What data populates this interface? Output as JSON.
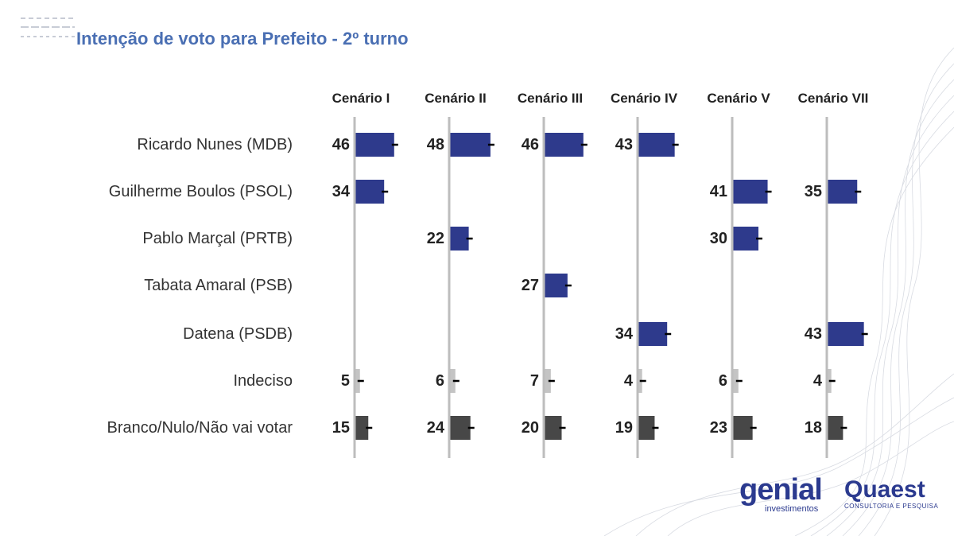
{
  "header": {
    "title": "Intenção de voto para Prefeito - 2º turno"
  },
  "logos": {
    "genial_word": "genial",
    "genial_sub": "investimentos",
    "quaest_word": "Quaest",
    "quaest_sub": "CONSULTORIA E PESQUISA"
  },
  "colors": {
    "candidate_bar": "#2e3a8c",
    "undecided_bar": "#c4c4c4",
    "blank_bar": "#474747",
    "axis_line": "#bdbdbd",
    "title": "#4a6fb3"
  },
  "chart_data": {
    "type": "bar",
    "orientation": "horizontal",
    "title": "Intenção de voto para Prefeito - 2º turno",
    "categories": [
      "Ricardo Nunes (MDB)",
      "Guilherme Boulos (PSOL)",
      "Pablo Marçal (PRTB)",
      "Tabata Amaral (PSB)",
      "Datena (PSDB)",
      "Indeciso",
      "Branco/Nulo/Não vai votar"
    ],
    "series": [
      {
        "name": "Cenário I",
        "values": [
          46,
          34,
          null,
          null,
          null,
          5,
          15
        ]
      },
      {
        "name": "Cenário II",
        "values": [
          48,
          null,
          22,
          null,
          null,
          6,
          24
        ]
      },
      {
        "name": "Cenário III",
        "values": [
          46,
          null,
          null,
          27,
          null,
          7,
          20
        ]
      },
      {
        "name": "Cenário IV",
        "values": [
          43,
          null,
          null,
          null,
          34,
          4,
          19
        ]
      },
      {
        "name": "Cenário V",
        "values": [
          null,
          41,
          30,
          null,
          null,
          6,
          23
        ]
      },
      {
        "name": "Cenário VII",
        "values": [
          null,
          35,
          null,
          null,
          43,
          4,
          18
        ]
      }
    ],
    "xlim": [
      0,
      100
    ]
  }
}
